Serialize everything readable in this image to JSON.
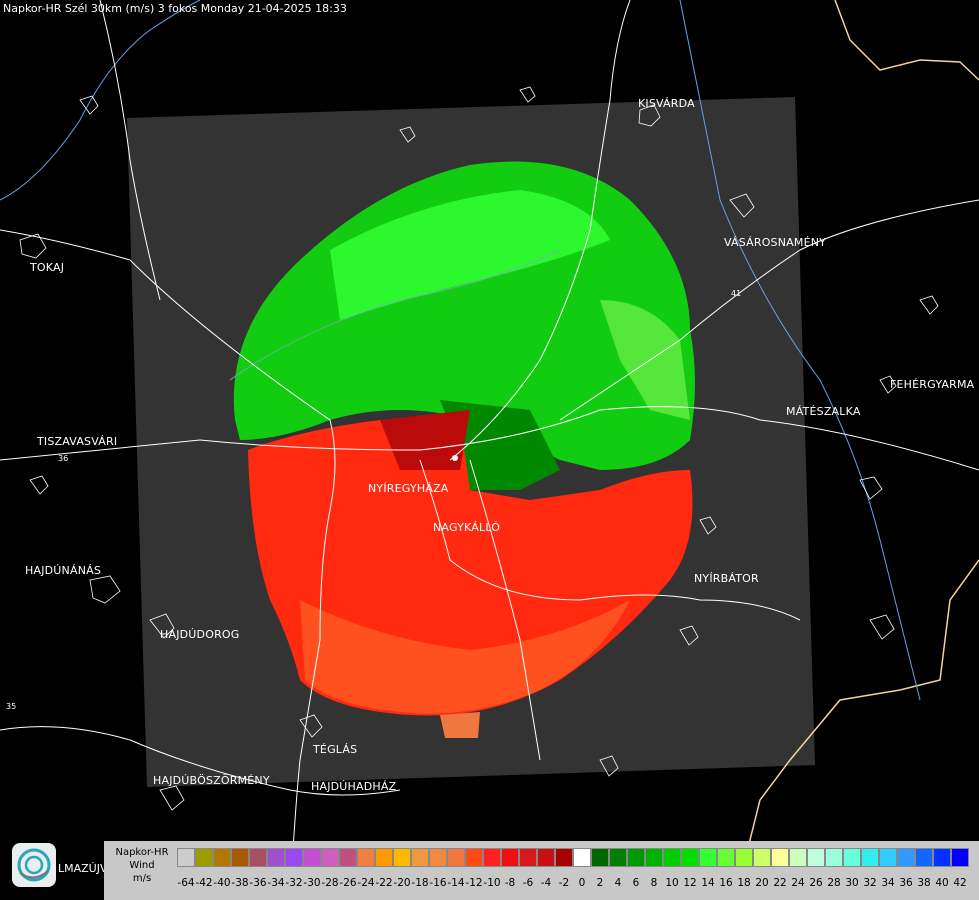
{
  "header": {
    "title": "Napkor-HR Szél 30km (m/s) 3 fokos Monday 21-04-2025 18:33"
  },
  "map": {
    "cities": [
      {
        "id": "kisvarda",
        "name": "KISVÁRDA"
      },
      {
        "id": "vasarosnameny",
        "name": "VÁSÁROSNAMÉNY"
      },
      {
        "id": "tokaj",
        "name": "TOKAJ"
      },
      {
        "id": "fehergyarmat",
        "name": "FEHÉRGYARMA"
      },
      {
        "id": "mateszalka",
        "name": "MÁTÉSZALKA"
      },
      {
        "id": "tiszavasvari",
        "name": "TISZAVASVÁRI"
      },
      {
        "id": "nyiregyhaza",
        "name": "NYÍREGYHÁZA"
      },
      {
        "id": "nagykallo",
        "name": "NAGYKÁLLÓ"
      },
      {
        "id": "hajdunanas",
        "name": "HAJDÚNÁNÁS"
      },
      {
        "id": "nyirbator",
        "name": "NYÍRBÁTOR"
      },
      {
        "id": "hajdudorog",
        "name": "HAJDÚDOROG"
      },
      {
        "id": "teglas",
        "name": "TÉGLÁS"
      },
      {
        "id": "hajduboszormeny",
        "name": "HAJDÚBÖSZÖRMÉNY"
      },
      {
        "id": "hajduhadhaz",
        "name": "HAJDÚHADHÁZ"
      }
    ],
    "road_numbers": [
      "36",
      "41",
      "35"
    ]
  },
  "logo": {
    "partial_city": "LMAZÚJVÁR"
  },
  "legend": {
    "title": [
      "Napkor-HR",
      "Wind",
      "m/s"
    ],
    "colors": [
      "#cccccc",
      "#9c9c00",
      "#b07800",
      "#a85a00",
      "#a85060",
      "#a050d0",
      "#9a48f0",
      "#c050d0",
      "#d060c0",
      "#c05080",
      "#f08040",
      "#ff9a00",
      "#ffb800",
      "#f09840",
      "#f08840",
      "#f07840",
      "#ff4818",
      "#ff2020",
      "#ee1010",
      "#d81818",
      "#c81010",
      "#a80000",
      "#ffffff",
      "#006600",
      "#007f00",
      "#009900",
      "#00b300",
      "#00cc00",
      "#00e000",
      "#33ff33",
      "#66ff33",
      "#99ff33",
      "#ccff66",
      "#ffff99",
      "#ccffbb",
      "#bbffdd",
      "#99ffdd",
      "#66ffdd",
      "#33eeee",
      "#33ccff",
      "#3399ff",
      "#1166ff",
      "#0033ff",
      "#0000ff"
    ],
    "labels": [
      "-64",
      "-42",
      "-40",
      "-38",
      "-36",
      "-34",
      "-32",
      "-30",
      "-28",
      "-26",
      "-24",
      "-22",
      "-20",
      "-18",
      "-16",
      "-14",
      "-12",
      "-10",
      "-8",
      "-6",
      "-4",
      "-2",
      "0",
      "2",
      "4",
      "6",
      "8",
      "10",
      "12",
      "14",
      "16",
      "18",
      "20",
      "22",
      "24",
      "26",
      "28",
      "30",
      "32",
      "34",
      "36",
      "38",
      "40",
      "42"
    ]
  }
}
